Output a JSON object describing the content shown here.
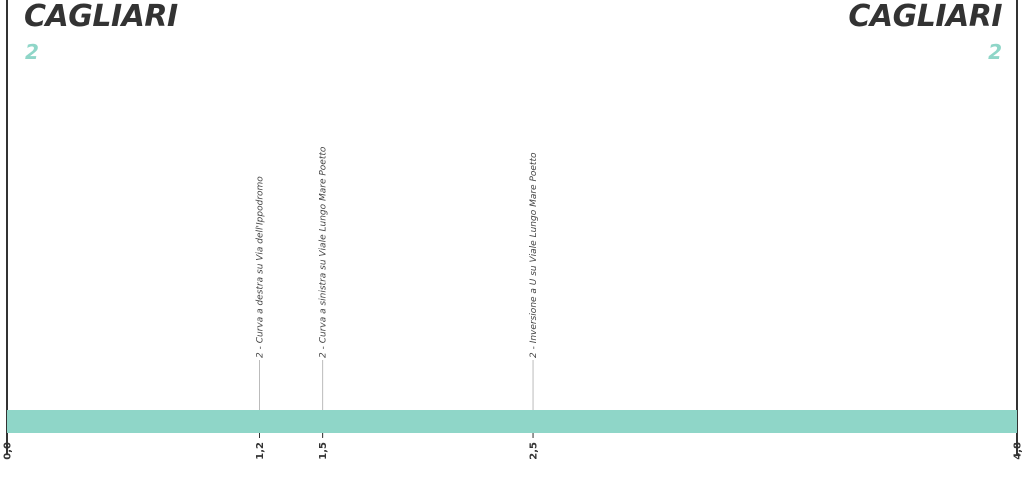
{
  "route": {
    "start_city": "CAGLIARI",
    "end_city": "CAGLIARI",
    "start_index": "2",
    "end_index": "2",
    "bar_color": "#8fd6c8",
    "axis_color": "#333333",
    "total_km": 4.8
  },
  "chart_data": {
    "type": "route-profile",
    "distance_range": [
      0,
      4.8
    ],
    "ticks": [
      {
        "km": 0.0,
        "label": "0,0"
      },
      {
        "km": 1.2,
        "label": "1,2"
      },
      {
        "km": 1.5,
        "label": "1,5"
      },
      {
        "km": 2.5,
        "label": "2,5"
      },
      {
        "km": 4.8,
        "label": "4,8"
      }
    ],
    "waypoints": [
      {
        "km": 1.2,
        "text": "2 - Curva a destra su Via dell'Ippodromo"
      },
      {
        "km": 1.5,
        "text": "2 - Curva a sinistra su Viale Lungo Mare Poetto"
      },
      {
        "km": 2.5,
        "text": "2 - Inversione a U su Viale Lungo Mare Poetto"
      }
    ]
  }
}
